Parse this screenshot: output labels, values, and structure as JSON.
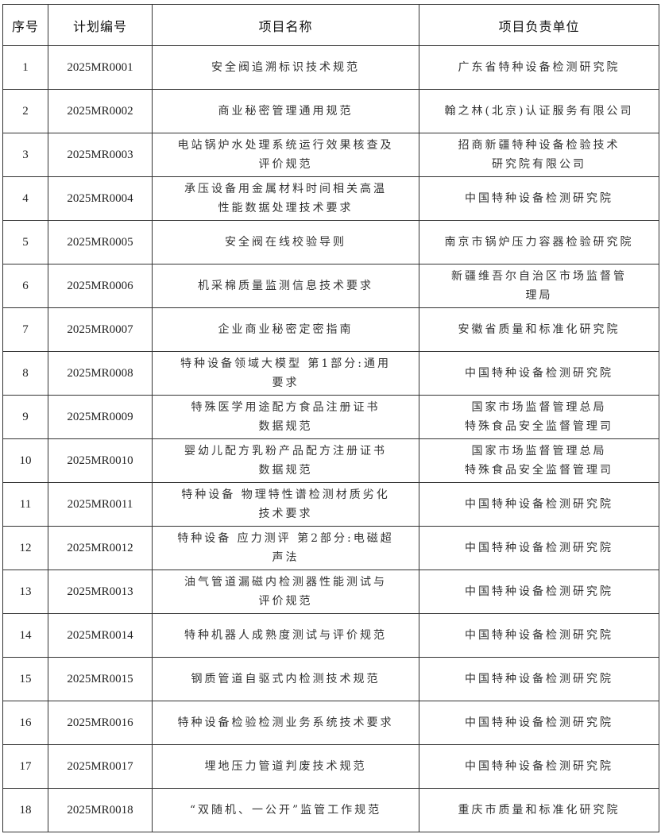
{
  "headers": [
    "序号",
    "计划编号",
    "项目名称",
    "项目负责单位"
  ],
  "rows": [
    {
      "no": "1",
      "code": "2025MR0001",
      "name": [
        "安全阀追溯标识技术规范"
      ],
      "unit": [
        "广东省特种设备检测研究院"
      ]
    },
    {
      "no": "2",
      "code": "2025MR0002",
      "name": [
        "商业秘密管理通用规范"
      ],
      "unit": [
        "翰之林(北京)认证服务有限公司"
      ]
    },
    {
      "no": "3",
      "code": "2025MR0003",
      "name": [
        "电站锅炉水处理系统运行效果核查及",
        "评价规范"
      ],
      "unit": [
        "招商新疆特种设备检验技术",
        "研究院有限公司"
      ]
    },
    {
      "no": "4",
      "code": "2025MR0004",
      "name": [
        "承压设备用金属材料时间相关高温",
        "性能数据处理技术要求"
      ],
      "unit": [
        "中国特种设备检测研究院"
      ]
    },
    {
      "no": "5",
      "code": "2025MR0005",
      "name": [
        "安全阀在线校验导则"
      ],
      "unit": [
        "南京市锅炉压力容器检验研究院"
      ]
    },
    {
      "no": "6",
      "code": "2025MR0006",
      "name": [
        "机采棉质量监测信息技术要求"
      ],
      "unit": [
        "新疆维吾尔自治区市场监督管",
        "理局"
      ]
    },
    {
      "no": "7",
      "code": "2025MR0007",
      "name": [
        "企业商业秘密定密指南"
      ],
      "unit": [
        "安徽省质量和标准化研究院"
      ]
    },
    {
      "no": "8",
      "code": "2025MR0008",
      "name": [
        "特种设备领域大模型 第1部分:通用",
        "要求"
      ],
      "unit": [
        "中国特种设备检测研究院"
      ]
    },
    {
      "no": "9",
      "code": "2025MR0009",
      "name": [
        "特殊医学用途配方食品注册证书",
        "数据规范"
      ],
      "unit": [
        "国家市场监督管理总局",
        "特殊食品安全监督管理司"
      ]
    },
    {
      "no": "10",
      "code": "2025MR0010",
      "name": [
        "婴幼儿配方乳粉产品配方注册证书",
        "数据规范"
      ],
      "unit": [
        "国家市场监督管理总局",
        "特殊食品安全监督管理司"
      ]
    },
    {
      "no": "11",
      "code": "2025MR0011",
      "name": [
        "特种设备 物理特性谱检测材质劣化",
        "技术要求"
      ],
      "unit": [
        "中国特种设备检测研究院"
      ]
    },
    {
      "no": "12",
      "code": "2025MR0012",
      "name": [
        "特种设备 应力测评 第2部分:电磁超",
        "声法"
      ],
      "unit": [
        "中国特种设备检测研究院"
      ]
    },
    {
      "no": "13",
      "code": "2025MR0013",
      "name": [
        "油气管道漏磁内检测器性能测试与",
        "评价规范"
      ],
      "unit": [
        "中国特种设备检测研究院"
      ]
    },
    {
      "no": "14",
      "code": "2025MR0014",
      "name": [
        "特种机器人成熟度测试与评价规范"
      ],
      "unit": [
        "中国特种设备检测研究院"
      ]
    },
    {
      "no": "15",
      "code": "2025MR0015",
      "name": [
        "钢质管道自驱式内检测技术规范"
      ],
      "unit": [
        "中国特种设备检测研究院"
      ]
    },
    {
      "no": "16",
      "code": "2025MR0016",
      "name": [
        "特种设备检验检测业务系统技术要求"
      ],
      "unit": [
        "中国特种设备检测研究院"
      ]
    },
    {
      "no": "17",
      "code": "2025MR0017",
      "name": [
        "埋地压力管道判废技术规范"
      ],
      "unit": [
        "中国特种设备检测研究院"
      ]
    },
    {
      "no": "18",
      "code": "2025MR0018",
      "name": [
        "“双随机、一公开”监管工作规范"
      ],
      "unit": [
        "重庆市质量和标准化研究院"
      ]
    }
  ]
}
